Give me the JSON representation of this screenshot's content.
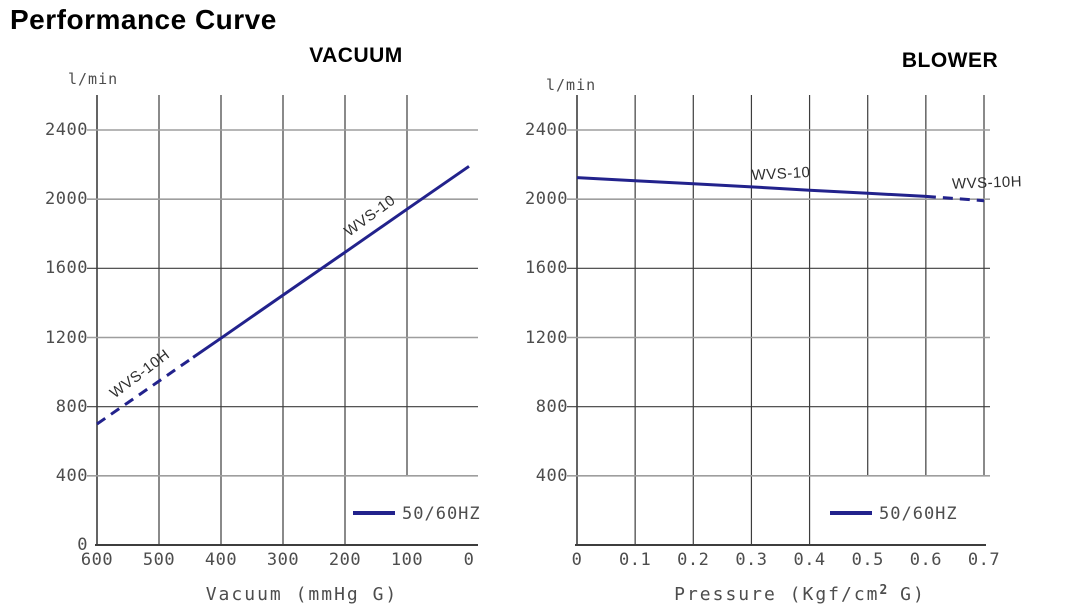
{
  "page": {
    "title": "Performance Curve"
  },
  "colors": {
    "curve": "#22228c",
    "grid_dark": "#3d3d3d",
    "grid_light": "#9e9e9e",
    "tick_text": "#4d4d4d"
  },
  "charts": [
    {
      "title": "VACUUM",
      "y_unit": "l/min",
      "xlabel": {
        "prefix": "Vacuum (mmHg G)",
        "sup": "",
        "suffix": ""
      },
      "legend_label": "50/60HZ",
      "chart_data": {
        "type": "line",
        "title": "VACUUM",
        "xlabel": "Vacuum (mmHg G)",
        "ylabel": "l/min",
        "xlim": [
          600,
          0
        ],
        "ylim": [
          0,
          2600
        ],
        "x_ticks": [
          600,
          500,
          400,
          300,
          200,
          100,
          0
        ],
        "y_ticks": [
          0,
          400,
          800,
          1200,
          1600,
          2000,
          2400
        ],
        "grid": true,
        "legend": "50/60HZ",
        "legend_position": "bottom-right",
        "series": [
          {
            "name": "WVS-10H",
            "style": "dashed",
            "points": [
              [
                600,
                700
              ],
              [
                500,
                948
              ],
              [
                445,
                1085
              ]
            ]
          },
          {
            "name": "WVS-10",
            "style": "solid",
            "points": [
              [
                445,
                1085
              ],
              [
                400,
                1196
              ],
              [
                300,
                1445
              ],
              [
                200,
                1693
              ],
              [
                100,
                1942
              ],
              [
                0,
                2190
              ]
            ]
          }
        ],
        "annotations": [
          {
            "text": "WVS-10H",
            "x": 531,
            "y": 989,
            "rotation": -37
          },
          {
            "text": "WVS-10",
            "x": 160,
            "y": 1903,
            "rotation": -36
          }
        ]
      }
    },
    {
      "title": "BLOWER",
      "y_unit": "l/min",
      "xlabel": {
        "prefix": "Pressure (Kgf/cm",
        "sup": "2",
        "suffix": " G)"
      },
      "legend_label": "50/60HZ",
      "chart_data": {
        "type": "line",
        "title": "BLOWER",
        "xlabel": "Pressure (Kgf/cm2 G)",
        "ylabel": "l/min",
        "xlim": [
          0,
          0.7
        ],
        "ylim": [
          0,
          2600
        ],
        "x_ticks": [
          0,
          0.1,
          0.2,
          0.3,
          0.4,
          0.5,
          0.6,
          0.7
        ],
        "y_ticks": [
          400,
          800,
          1200,
          1600,
          2000,
          2400
        ],
        "grid": true,
        "legend": "50/60HZ",
        "legend_position": "bottom-right",
        "series": [
          {
            "name": "WVS-10",
            "style": "solid",
            "points": [
              [
                0,
                2125
              ],
              [
                0.1,
                2107
              ],
              [
                0.2,
                2089
              ],
              [
                0.3,
                2071
              ],
              [
                0.4,
                2052
              ],
              [
                0.5,
                2034
              ],
              [
                0.6,
                2016
              ]
            ]
          },
          {
            "name": "WVS-10H",
            "style": "dashed",
            "points": [
              [
                0.6,
                2016
              ],
              [
                0.7,
                1991
              ]
            ]
          }
        ],
        "annotations": [
          {
            "text": "WVS-10",
            "x": 0.35,
            "y": 2148,
            "rotation": -3
          },
          {
            "text": "WVS-10H",
            "x": 0.705,
            "y": 2093,
            "rotation": -2
          }
        ]
      }
    }
  ]
}
